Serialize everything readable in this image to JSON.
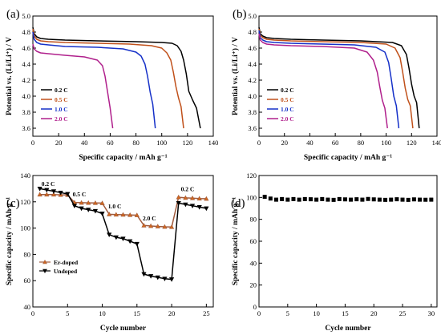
{
  "figure_labels": [
    "(a)",
    "(b)",
    "(c)",
    "(d)"
  ],
  "colors": {
    "0.2 C": "#000000",
    "0.5 C": "#c0501a",
    "1.0 C": "#1530c8",
    "2.0 C": "#b0208c",
    "Er-doped": "#a05a3c",
    "Undoped": "#000000"
  },
  "chart_data": [
    {
      "type": "line",
      "panel": "(a)",
      "xlabel": "Specific capacity / mAh g⁻¹",
      "ylabel": "Potential vs. (Li/Li⁺) / V",
      "xlim": [
        0,
        140
      ],
      "ylim": [
        3.5,
        5.0
      ],
      "xticks": [
        0,
        20,
        40,
        60,
        80,
        100,
        120,
        140
      ],
      "yticks": [
        3.6,
        3.8,
        4.0,
        4.2,
        4.4,
        4.6,
        4.8,
        5.0
      ],
      "legend_position": "center-left",
      "series": [
        {
          "name": "0.2 C",
          "x": [
            0,
            1,
            3,
            6,
            12,
            25,
            50,
            80,
            100,
            108,
            112,
            115,
            117,
            119,
            121,
            124,
            127,
            130
          ],
          "y": [
            4.86,
            4.78,
            4.74,
            4.72,
            4.71,
            4.7,
            4.69,
            4.68,
            4.67,
            4.66,
            4.63,
            4.56,
            4.45,
            4.28,
            4.06,
            3.95,
            3.85,
            3.6
          ]
        },
        {
          "name": "0.5 C",
          "x": [
            0,
            1,
            3,
            6,
            12,
            25,
            50,
            75,
            92,
            100,
            104,
            107,
            109,
            111,
            113,
            115,
            117
          ],
          "y": [
            4.84,
            4.75,
            4.71,
            4.69,
            4.68,
            4.67,
            4.66,
            4.65,
            4.63,
            4.6,
            4.54,
            4.45,
            4.3,
            4.12,
            3.98,
            3.87,
            3.6
          ]
        },
        {
          "name": "1.0 C",
          "x": [
            0,
            1,
            3,
            6,
            12,
            25,
            50,
            70,
            80,
            84,
            87,
            89,
            91,
            93,
            95
          ],
          "y": [
            4.8,
            4.71,
            4.67,
            4.65,
            4.64,
            4.62,
            4.61,
            4.59,
            4.55,
            4.5,
            4.4,
            4.25,
            4.05,
            3.9,
            3.6
          ]
        },
        {
          "name": "2.0 C",
          "x": [
            0,
            1,
            3,
            6,
            12,
            25,
            40,
            50,
            54,
            56,
            58,
            60,
            62
          ],
          "y": [
            4.65,
            4.59,
            4.56,
            4.54,
            4.53,
            4.51,
            4.49,
            4.45,
            4.38,
            4.25,
            4.05,
            3.85,
            3.6
          ]
        }
      ]
    },
    {
      "type": "line",
      "panel": "(b)",
      "xlabel": "Specific capacity / mAh g⁻¹",
      "ylabel": "Potential vs. (Li/Li⁺) / V",
      "xlim": [
        0,
        140
      ],
      "ylim": [
        3.5,
        5.0
      ],
      "xticks": [
        0,
        20,
        40,
        60,
        80,
        100,
        120,
        140
      ],
      "yticks": [
        3.6,
        3.8,
        4.0,
        4.2,
        4.4,
        4.6,
        4.8,
        5.0
      ],
      "legend_position": "center-left",
      "series": [
        {
          "name": "0.2 C",
          "x": [
            0,
            1,
            3,
            6,
            12,
            25,
            50,
            80,
            105,
            112,
            116,
            118,
            120,
            122,
            124,
            126
          ],
          "y": [
            4.86,
            4.78,
            4.75,
            4.73,
            4.72,
            4.71,
            4.7,
            4.69,
            4.67,
            4.63,
            4.52,
            4.35,
            4.15,
            4.0,
            3.92,
            3.6
          ]
        },
        {
          "name": "0.5 C",
          "x": [
            0,
            1,
            3,
            6,
            12,
            25,
            50,
            80,
            100,
            107,
            111,
            113,
            115,
            117,
            119,
            121
          ],
          "y": [
            4.84,
            4.76,
            4.73,
            4.71,
            4.7,
            4.69,
            4.68,
            4.67,
            4.65,
            4.6,
            4.48,
            4.3,
            4.1,
            3.96,
            3.88,
            3.6
          ]
        },
        {
          "name": "1.0 C",
          "x": [
            0,
            1,
            3,
            6,
            12,
            25,
            50,
            75,
            92,
            99,
            102,
            104,
            106,
            108,
            110
          ],
          "y": [
            4.82,
            4.73,
            4.7,
            4.68,
            4.67,
            4.66,
            4.65,
            4.64,
            4.61,
            4.55,
            4.42,
            4.22,
            4.0,
            3.88,
            3.6
          ]
        },
        {
          "name": "2.0 C",
          "x": [
            0,
            1,
            3,
            6,
            12,
            25,
            50,
            75,
            85,
            90,
            93,
            95,
            97,
            99,
            101
          ],
          "y": [
            4.78,
            4.7,
            4.67,
            4.65,
            4.64,
            4.63,
            4.62,
            4.6,
            4.55,
            4.45,
            4.3,
            4.12,
            3.95,
            3.85,
            3.6
          ]
        }
      ]
    },
    {
      "type": "line",
      "panel": "(c)",
      "xlabel": "Cycle number",
      "ylabel": "Specific capacity / mAh g⁻¹",
      "xlim": [
        0,
        26
      ],
      "ylim": [
        40,
        140
      ],
      "xticks": [
        0,
        5,
        10,
        15,
        20,
        25
      ],
      "yticks": [
        40,
        60,
        80,
        100,
        120,
        140
      ],
      "legend_position": "lower-left",
      "annotations": [
        {
          "text": "0.2 C",
          "x": 2.2,
          "y": 132
        },
        {
          "text": "0.5 C",
          "x": 6.7,
          "y": 124
        },
        {
          "text": "1.0 C",
          "x": 11.8,
          "y": 115
        },
        {
          "text": "2.0 C",
          "x": 16.8,
          "y": 106
        },
        {
          "text": "0.2 C",
          "x": 22.3,
          "y": 128
        }
      ],
      "series": [
        {
          "name": "Er-doped",
          "marker": "triangle-up",
          "x": [
            1,
            2,
            3,
            4,
            5,
            6,
            7,
            8,
            9,
            10,
            11,
            12,
            13,
            14,
            15,
            16,
            17,
            18,
            19,
            20,
            21,
            22,
            23,
            24,
            25
          ],
          "y": [
            125.5,
            125.5,
            125.5,
            125.3,
            125.2,
            119.5,
            119.3,
            119.2,
            119.1,
            119.0,
            110.5,
            110.3,
            110.2,
            110.0,
            109.8,
            102.0,
            101.6,
            101.3,
            101.0,
            100.8,
            123.5,
            123.0,
            122.8,
            122.5,
            122.3
          ]
        },
        {
          "name": "Undoped",
          "marker": "triangle-down",
          "x": [
            1,
            2,
            3,
            4,
            5,
            6,
            7,
            8,
            9,
            10,
            11,
            12,
            13,
            14,
            15,
            16,
            17,
            18,
            19,
            20,
            21,
            22,
            23,
            24,
            25
          ],
          "y": [
            130,
            129,
            128,
            127,
            126,
            117,
            115,
            114,
            113,
            111,
            95,
            93,
            92,
            90,
            88,
            65,
            63.5,
            62.5,
            61.5,
            61,
            119,
            118,
            117,
            116,
            115
          ]
        }
      ]
    },
    {
      "type": "scatter",
      "panel": "(d)",
      "xlabel": "Cycle number",
      "ylabel": "Specific capacity / mAh g⁻¹",
      "xlim": [
        0,
        31
      ],
      "ylim": [
        0,
        120
      ],
      "xticks": [
        0,
        5,
        10,
        15,
        20,
        25,
        30
      ],
      "yticks": [
        0,
        20,
        40,
        60,
        80,
        100,
        120
      ],
      "series": [
        {
          "marker": "square",
          "x": [
            1,
            2,
            3,
            4,
            5,
            6,
            7,
            8,
            9,
            10,
            11,
            12,
            13,
            14,
            15,
            16,
            17,
            18,
            19,
            20,
            21,
            22,
            23,
            24,
            25,
            26,
            27,
            28,
            29,
            30
          ],
          "y": [
            100.5,
            99.0,
            98.0,
            98.5,
            98.0,
            98.5,
            98.0,
            98.5,
            98.3,
            98.0,
            98.5,
            98.0,
            97.8,
            98.5,
            98.2,
            98.0,
            98.3,
            98.0,
            98.6,
            98.2,
            98.0,
            97.8,
            98.0,
            98.3,
            98.0,
            97.8,
            98.2,
            98.0,
            97.9,
            98.0
          ]
        }
      ]
    }
  ]
}
